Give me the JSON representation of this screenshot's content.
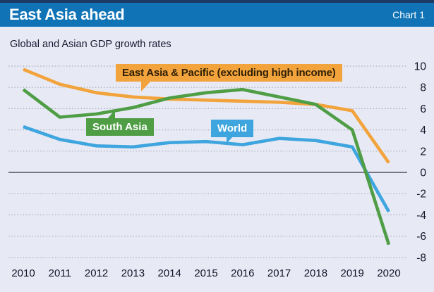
{
  "header": {
    "title": "East Asia ahead",
    "chart_label": "Chart 1"
  },
  "subtitle": "Global and Asian GDP growth rates",
  "colors": {
    "header_bg": "#0F73B6",
    "page_bg": "#E7EAF5",
    "orange": "#F2A33C",
    "green": "#4F9D45",
    "blue": "#3FA5DE",
    "grid": "#ABACBA",
    "zero_line": "#52525C",
    "axis_text": "#14142A"
  },
  "chart_data": {
    "type": "line",
    "title": "Global and Asian GDP growth rates",
    "x": [
      2010,
      2011,
      2012,
      2013,
      2014,
      2015,
      2016,
      2017,
      2018,
      2019,
      2020
    ],
    "series": [
      {
        "name": "East Asia & Pacific (excluding high income)",
        "color_key": "orange",
        "values": [
          9.7,
          8.3,
          7.5,
          7.1,
          6.9,
          6.8,
          6.7,
          6.6,
          6.4,
          5.8,
          0.9
        ]
      },
      {
        "name": "South Asia",
        "color_key": "green",
        "values": [
          7.8,
          5.2,
          5.5,
          6.1,
          7.0,
          7.5,
          7.8,
          7.1,
          6.4,
          4.0,
          -6.8
        ]
      },
      {
        "name": "World",
        "color_key": "blue",
        "values": [
          4.3,
          3.1,
          2.5,
          2.4,
          2.8,
          2.9,
          2.6,
          3.2,
          3.0,
          2.4,
          -3.7
        ]
      }
    ],
    "xlabel": "",
    "ylabel": "",
    "ylim": [
      -8,
      10
    ],
    "ytick_step": 2,
    "grid": "horizontal dotted, solid zero line",
    "legend_position": "inline labels on chart",
    "y_axis_side": "right"
  }
}
